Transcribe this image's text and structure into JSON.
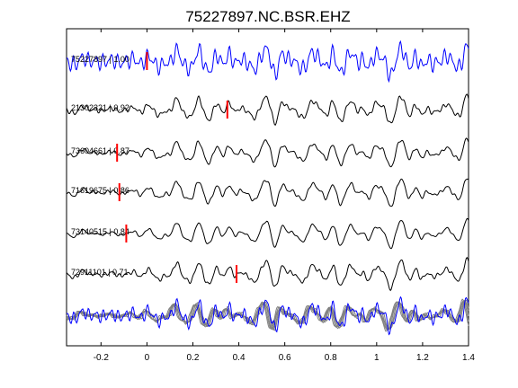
{
  "window_title": "",
  "chart_data": {
    "type": "line",
    "title": "75227897.NC.BSR.EHZ",
    "xlabel": "",
    "ylabel": "",
    "xlim": [
      -0.35,
      1.4
    ],
    "xticks": [
      -0.2,
      0,
      0.2,
      0.4,
      0.6,
      0.8,
      1,
      1.2,
      1.4
    ],
    "xtick_labels": [
      "-0.2",
      "0",
      "0.2",
      "0.4",
      "0.6",
      "0.8",
      "1",
      "1.2",
      "1.4"
    ],
    "grid": false,
    "legend": "none",
    "colors": {
      "reference": "#0000ff",
      "trace": "#000000",
      "pick": "#ff0000",
      "overlay": "#808080"
    },
    "series": [
      {
        "label": "75227897 | 1.00",
        "event_id": "75227897",
        "correlation": 1.0,
        "pick_time": 0.0,
        "shift": 0.0,
        "noise_amp": 0.38,
        "color": "reference"
      },
      {
        "label": "21302321 | 0.92",
        "event_id": "21302321",
        "correlation": 0.92,
        "pick_time": 0.35,
        "shift": 0.0,
        "noise_amp": 0.12,
        "color": "trace"
      },
      {
        "label": "73604661 | 0.87",
        "event_id": "73604661",
        "correlation": 0.87,
        "pick_time": -0.13,
        "shift": 0.0,
        "noise_amp": 0.08,
        "color": "trace"
      },
      {
        "label": "71619675 | 0.86",
        "event_id": "71619675",
        "correlation": 0.86,
        "pick_time": -0.12,
        "shift": 0.0,
        "noise_amp": 0.08,
        "color": "trace"
      },
      {
        "label": "73140515 | 0.84",
        "event_id": "73140515",
        "correlation": 0.84,
        "pick_time": -0.09,
        "shift": 0.0,
        "noise_amp": 0.05,
        "color": "trace"
      },
      {
        "label": "72911101 | 0.71",
        "event_id": "72911101",
        "correlation": 0.71,
        "pick_time": 0.39,
        "shift": 0.0,
        "noise_amp": 0.1,
        "color": "trace"
      }
    ],
    "stack": {
      "description": "overlay of all traces",
      "reference_color": "reference",
      "others_color": "overlay"
    }
  }
}
